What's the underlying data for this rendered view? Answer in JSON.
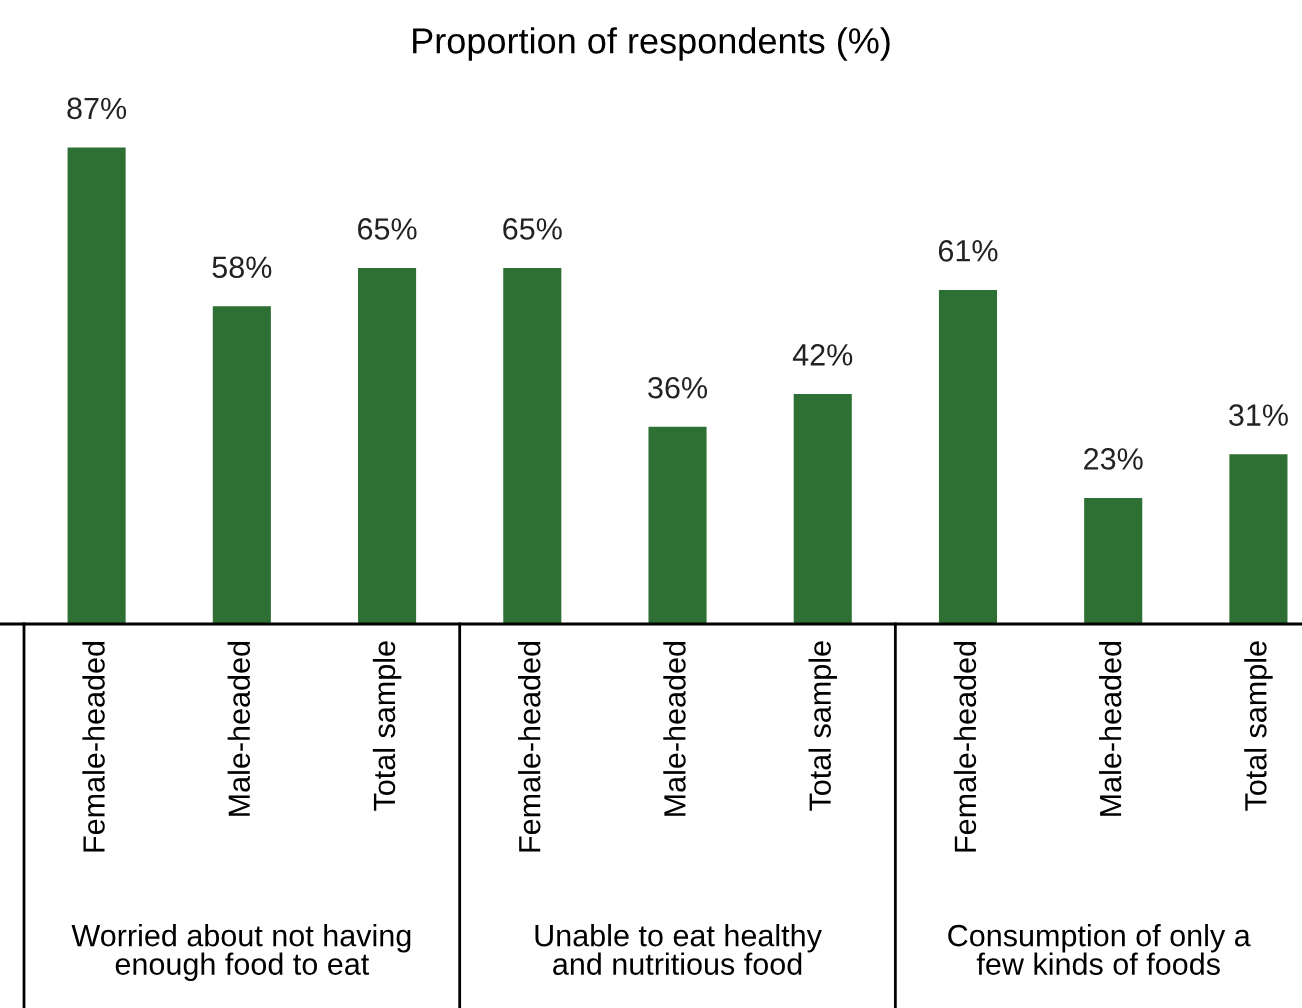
{
  "chart_data": {
    "type": "bar",
    "title": "Proportion of respondents (%)",
    "categories": [
      "Female-headed",
      "Male-headed",
      "Total sample",
      "Female-headed",
      "Male-headed",
      "Total sample",
      "Female-headed",
      "Male-headed",
      "Total sample"
    ],
    "values": [
      87,
      58,
      65,
      65,
      36,
      42,
      61,
      23,
      31
    ],
    "value_labels": [
      "87%",
      "58%",
      "65%",
      "65%",
      "36%",
      "42%",
      "61%",
      "23%",
      "31%"
    ],
    "color": "#2e7033",
    "annotations": [
      "Worried about not having\nenough food to eat",
      "Unable to eat healthy\nand nutritious food",
      "Consumption of only a\nfew kinds of foods"
    ]
  }
}
